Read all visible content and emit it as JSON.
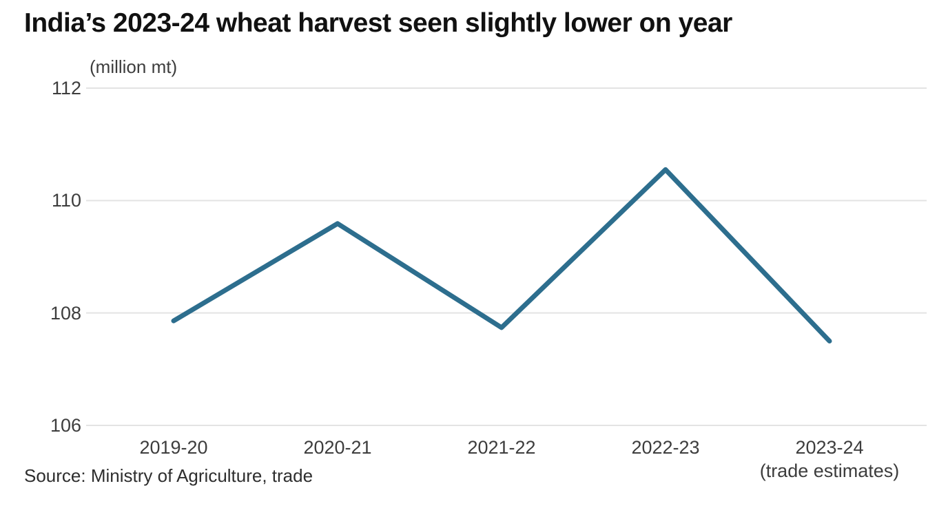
{
  "page": {
    "title": "India’s 2023-24 wheat harvest seen slightly lower on year",
    "source": "Source: Ministry of Agriculture, trade"
  },
  "chart_data": {
    "type": "line",
    "title": "India’s 2023-24 wheat harvest seen slightly lower on year",
    "subtitle": "(million mt)",
    "categories": [
      "2019-20",
      "2020-21",
      "2021-22",
      "2022-23",
      "2023-24"
    ],
    "last_category_note": "(trade estimates)",
    "values": [
      107.86,
      109.59,
      107.74,
      110.55,
      107.5
    ],
    "ylabel": "million mt",
    "ylim": [
      106,
      112
    ],
    "yticks": [
      112,
      110,
      108,
      106
    ],
    "grid": "horizontal",
    "legend": "none",
    "line_color": "#2d6e8e",
    "gridline_color": "#e3e3e3",
    "source": "Source: Ministry of Agriculture, trade"
  }
}
